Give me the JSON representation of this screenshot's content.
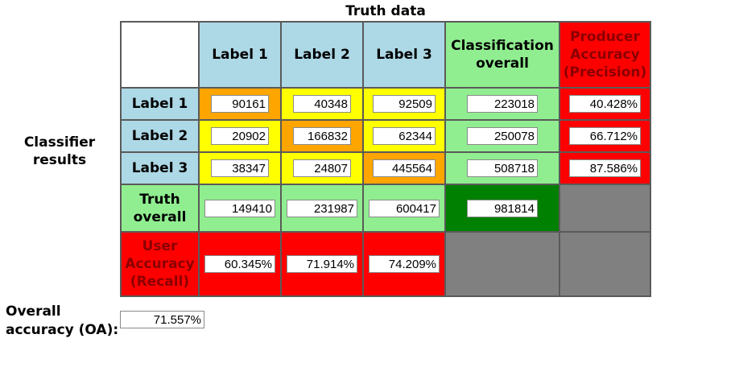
{
  "title": "Truth data",
  "row_group_label": [
    "Classifier",
    "results"
  ],
  "column_headers": [
    "Label 1",
    "Label 2",
    "Label 3"
  ],
  "classification_overall_header": [
    "Classification",
    "overall"
  ],
  "producer_accuracy_header": [
    "Producer",
    "Accuracy",
    "(Precision)"
  ],
  "rows": [
    {
      "label": "Label 1",
      "values": [
        "90161",
        "40348",
        "92509"
      ],
      "classification_overall": "223018",
      "producer_accuracy": "40.428%"
    },
    {
      "label": "Label 2",
      "values": [
        "20902",
        "166832",
        "62344"
      ],
      "classification_overall": "250078",
      "producer_accuracy": "66.712%"
    },
    {
      "label": "Label 3",
      "values": [
        "38347",
        "24807",
        "445564"
      ],
      "classification_overall": "508718",
      "producer_accuracy": "87.586%"
    }
  ],
  "truth_overall": {
    "label": [
      "Truth",
      "overall"
    ],
    "values": [
      "149410",
      "231987",
      "600417"
    ],
    "grand_total": "981814"
  },
  "user_accuracy": {
    "label": [
      "User",
      "Accuracy",
      "(Recall)"
    ],
    "values": [
      "60.345%",
      "71.914%",
      "74.209%"
    ]
  },
  "overall_accuracy": {
    "label": [
      "Overall",
      "accuracy (OA):"
    ],
    "value": "71.557%"
  },
  "colors": {
    "header_blue": "#add8e6",
    "diagonal": "#ffa500",
    "off_diagonal": "#ffff00",
    "totals_green": "#90ee90",
    "grand_total_green": "#008000",
    "accuracy_red": "#ff0000",
    "empty_gray": "#808080"
  }
}
